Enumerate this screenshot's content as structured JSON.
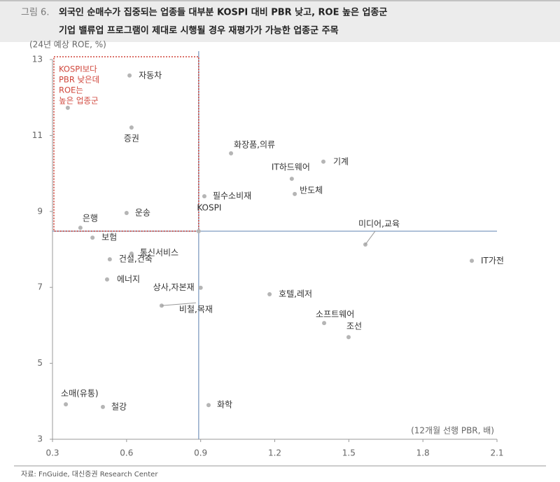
{
  "chart_data": {
    "type": "scatter",
    "figure_label": "그림 6.",
    "title": [
      "외국인 순매수가 집중되는 업종들 대부분 KOSPI 대비 PBR 낮고, ROE 높은 업종군",
      "기업 밸류업 프로그램이 제대로 시행될 경우 재평가가 가능한 업종군 주목"
    ],
    "ylabel": "(24년 예상 ROE, %)",
    "xlabel": "(12개월 선행 PBR, 배)",
    "source": "자료: FnGuide, 대신증권 Research Center",
    "annotation": [
      "KOSPI보다",
      "PBR 낮은데",
      "ROE는",
      "높은 업종군"
    ],
    "labels": [
      "자동차",
      null,
      "증권",
      "화장품,의류",
      "기계",
      "IT하드웨어",
      "반도체",
      "필수소비재",
      "운송",
      "KOSPI",
      "은행",
      "미디어,교육",
      "보험",
      "통신서비스",
      "건설,건축",
      "IT가전",
      "에너지",
      "상사,자본재",
      "호텔,레저",
      "비철,목재",
      "소프트웨어",
      "조선",
      "소매(유통)",
      "철강",
      "화학"
    ],
    "x": [
      0.612,
      0.362,
      0.62,
      1.023,
      1.397,
      1.269,
      1.281,
      0.915,
      0.6,
      0.892,
      0.413,
      1.567,
      0.462,
      0.62,
      0.532,
      1.998,
      0.521,
      0.9,
      1.179,
      0.742,
      1.4,
      1.499,
      0.354,
      0.504,
      0.932
    ],
    "y": [
      12.58,
      11.73,
      11.21,
      10.53,
      10.31,
      9.86,
      9.46,
      9.4,
      8.96,
      8.48,
      8.57,
      8.13,
      8.31,
      7.89,
      7.74,
      7.7,
      7.21,
      6.99,
      6.82,
      6.52,
      6.06,
      5.69,
      3.92,
      3.85,
      3.9
    ],
    "xlim": [
      0.3,
      2.1
    ],
    "xticks": [
      0.3,
      0.6,
      0.9,
      1.2,
      1.5,
      1.8,
      2.1
    ],
    "ylim": [
      3,
      13
    ],
    "yticks": [
      3,
      5,
      7,
      9,
      11,
      13
    ],
    "color": "#b5b5b5",
    "reference_color": "#7f9cc0",
    "annotation_color": "#d0463b"
  }
}
